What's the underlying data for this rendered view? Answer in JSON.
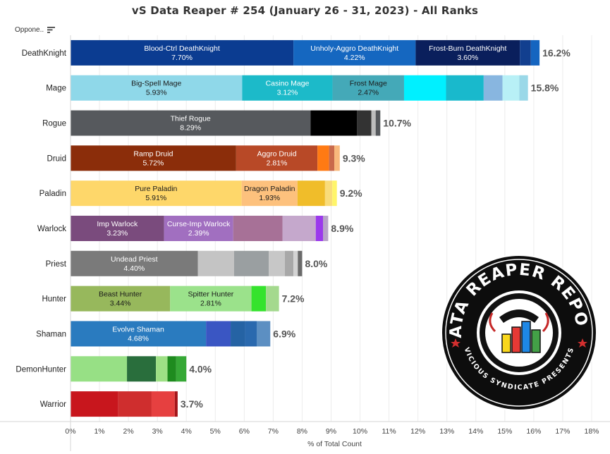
{
  "header": {
    "title": "vS Data Reaper # 254 (January 26 - 31, 2023) - All Ranks",
    "sort_label": "Oppone..",
    "sort_icon": "sort-descending-icon"
  },
  "badge": {
    "top_text": "DATA REAPER REPORT",
    "bottom_text": "VICIOUS SYNDICATE PRESENTS"
  },
  "chart_data": {
    "type": "bar",
    "orientation": "horizontal",
    "stacked": true,
    "title": "vS Data Reaper # 254 (January 26 - 31, 2023) - All Ranks",
    "xlabel": "% of Total Count",
    "ylabel": "Oppone..",
    "xlim": [
      0,
      18
    ],
    "xticks": [
      "0%",
      "1%",
      "2%",
      "3%",
      "4%",
      "5%",
      "6%",
      "7%",
      "8%",
      "9%",
      "10%",
      "11%",
      "12%",
      "13%",
      "14%",
      "15%",
      "16%",
      "17%",
      "18%"
    ],
    "grid": "vertical",
    "categories": [
      "DeathKnight",
      "Mage",
      "Rogue",
      "Druid",
      "Paladin",
      "Warlock",
      "Priest",
      "Hunter",
      "Shaman",
      "DemonHunter",
      "Warrior"
    ],
    "totals": [
      "16.2%",
      "15.8%",
      "10.7%",
      "9.3%",
      "9.2%",
      "8.9%",
      "8.0%",
      "7.2%",
      "6.9%",
      "4.0%",
      "3.7%"
    ],
    "rows": [
      {
        "class": "DeathKnight",
        "total": 16.2,
        "segments": [
          {
            "name": "Blood-Ctrl DeathKnight",
            "label": "7.70%",
            "value": 7.7,
            "color": "#0b3c91"
          },
          {
            "name": "Unholy-Aggro DeathKnight",
            "label": "4.22%",
            "value": 4.22,
            "color": "#1567c0"
          },
          {
            "name": "Frost-Burn DeathKnight",
            "label": "3.60%",
            "value": 3.6,
            "color": "#0a1f5c"
          },
          {
            "value": 0.38,
            "color": "#123f8f"
          },
          {
            "value": 0.3,
            "color": "#1565c0"
          }
        ]
      },
      {
        "class": "Mage",
        "total": 15.8,
        "segments": [
          {
            "name": "Big-Spell Mage",
            "label": "5.93%",
            "value": 5.93,
            "color": "#8fd8e9"
          },
          {
            "name": "Casino Mage",
            "label": "3.12%",
            "value": 3.12,
            "color": "#1cbac9"
          },
          {
            "name": "Frost Mage",
            "label": "2.47%",
            "value": 2.47,
            "color": "#44a9b8"
          },
          {
            "value": 1.45,
            "color": "#00f0ff"
          },
          {
            "value": 1.3,
            "color": "#19b9cc"
          },
          {
            "value": 0.65,
            "color": "#88b6e0"
          },
          {
            "value": 0.58,
            "color": "#b8f0f6"
          },
          {
            "value": 0.3,
            "color": "#9ad8e8"
          }
        ]
      },
      {
        "class": "Rogue",
        "total": 10.7,
        "segments": [
          {
            "name": "Thief Rogue",
            "label": "8.29%",
            "value": 8.29,
            "color": "#56595d"
          },
          {
            "value": 1.6,
            "color": "#000000"
          },
          {
            "value": 0.5,
            "color": "#333333"
          },
          {
            "value": 0.15,
            "color": "#bdbdbd"
          },
          {
            "value": 0.16,
            "color": "#55585c"
          }
        ]
      },
      {
        "class": "Druid",
        "total": 9.3,
        "segments": [
          {
            "name": "Ramp Druid",
            "label": "5.72%",
            "value": 5.72,
            "color": "#8b2d0a"
          },
          {
            "name": "Aggro Druid",
            "label": "2.81%",
            "value": 2.81,
            "color": "#b84927"
          },
          {
            "value": 0.4,
            "color": "#ff7a13"
          },
          {
            "value": 0.18,
            "color": "#c96a4b"
          },
          {
            "value": 0.19,
            "color": "#f8b97c"
          }
        ]
      },
      {
        "class": "Paladin",
        "total": 9.2,
        "segments": [
          {
            "name": "Pure Paladin",
            "label": "5.91%",
            "value": 5.91,
            "color": "#fed76a"
          },
          {
            "name": "Dragon Paladin",
            "label": "1.93%",
            "value": 1.93,
            "color": "#fdc17d"
          },
          {
            "value": 0.95,
            "color": "#f0bd2a"
          },
          {
            "value": 0.25,
            "color": "#f9dc7a"
          },
          {
            "value": 0.16,
            "color": "#fff56a"
          }
        ]
      },
      {
        "class": "Warlock",
        "total": 8.9,
        "segments": [
          {
            "name": "Imp Warlock",
            "label": "3.23%",
            "value": 3.23,
            "color": "#7a4b7d"
          },
          {
            "name": "Curse-Imp Warlock",
            "label": "2.39%",
            "value": 2.39,
            "color": "#a16fc0"
          },
          {
            "value": 1.7,
            "color": "#a77197"
          },
          {
            "value": 1.15,
            "color": "#c5a8cc"
          },
          {
            "value": 0.25,
            "color": "#9b39ec"
          },
          {
            "value": 0.18,
            "color": "#b8a4c8"
          }
        ]
      },
      {
        "class": "Priest",
        "total": 8.0,
        "segments": [
          {
            "name": "Undead Priest",
            "label": "4.40%",
            "value": 4.4,
            "color": "#7a7a7a"
          },
          {
            "value": 1.25,
            "color": "#c4c4c4"
          },
          {
            "value": 1.2,
            "color": "#9a9fa1"
          },
          {
            "value": 0.55,
            "color": "#c7c7c7"
          },
          {
            "value": 0.3,
            "color": "#a8a8a8"
          },
          {
            "value": 0.15,
            "color": "#d3d3d3"
          },
          {
            "value": 0.15,
            "color": "#6a6a6a"
          }
        ]
      },
      {
        "class": "Hunter",
        "total": 7.2,
        "segments": [
          {
            "name": "Beast Hunter",
            "label": "3.44%",
            "value": 3.44,
            "color": "#97b85c"
          },
          {
            "name": "Spitter Hunter",
            "label": "2.81%",
            "value": 2.81,
            "color": "#9be28b"
          },
          {
            "value": 0.5,
            "color": "#35e32d"
          },
          {
            "value": 0.45,
            "color": "#a4d98e"
          }
        ]
      },
      {
        "class": "Shaman",
        "total": 6.9,
        "segments": [
          {
            "name": "Evolve Shaman",
            "label": "4.68%",
            "value": 4.68,
            "color": "#2a7bbf"
          },
          {
            "value": 0.85,
            "color": "#3a56c3"
          },
          {
            "value": 0.5,
            "color": "#2563a4"
          },
          {
            "value": 0.4,
            "color": "#2a69ae"
          },
          {
            "value": 0.47,
            "color": "#5c8fc2"
          }
        ]
      },
      {
        "class": "DemonHunter",
        "total": 4.0,
        "segments": [
          {
            "value": 1.95,
            "color": "#97e085"
          },
          {
            "value": 1.0,
            "color": "#296e3c"
          },
          {
            "value": 0.4,
            "color": "#9ee085"
          },
          {
            "value": 0.3,
            "color": "#1e8b1e"
          },
          {
            "value": 0.35,
            "color": "#36a836"
          }
        ]
      },
      {
        "class": "Warrior",
        "total": 3.7,
        "segments": [
          {
            "value": 1.65,
            "color": "#c8161d"
          },
          {
            "value": 1.15,
            "color": "#cf2e2e"
          },
          {
            "value": 0.8,
            "color": "#e64040"
          },
          {
            "value": 0.1,
            "color": "#a3151a"
          }
        ]
      }
    ]
  }
}
